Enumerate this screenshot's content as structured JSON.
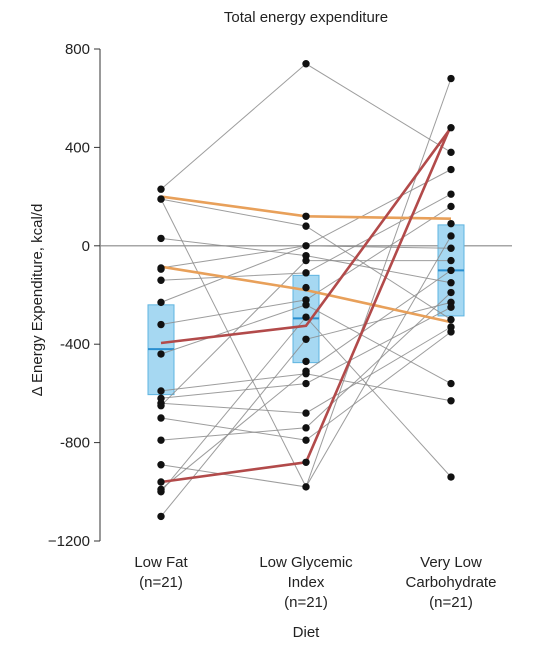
{
  "chart_data": {
    "type": "scatter",
    "title": "Total energy expenditure",
    "xlabel": "Diet",
    "ylabel": "Δ Energy Expenditure, kcal/d",
    "ylim": [
      -1200,
      800
    ],
    "yticks": [
      800,
      400,
      0,
      -400,
      -800,
      -1200
    ],
    "ytick_labels": [
      "800",
      "400",
      "0",
      "-400",
      "-800",
      "−1200"
    ],
    "categories": [
      {
        "lines": [
          "Low Fat",
          "(n=21)"
        ]
      },
      {
        "lines": [
          "Low Glycemic",
          "Index",
          "(n=21)"
        ]
      },
      {
        "lines": [
          "Very Low",
          "Carbohydrate",
          "(n=21)"
        ]
      }
    ],
    "boxes": [
      {
        "low": -605,
        "median": -420,
        "high": -240
      },
      {
        "low": -475,
        "median": -295,
        "high": -120
      },
      {
        "low": -285,
        "median": -100,
        "high": 85
      }
    ],
    "points": [
      [
        230,
        190,
        30,
        -90,
        -95,
        -230,
        -320,
        -440,
        -590,
        -620,
        -640,
        -700,
        -790,
        -890,
        -960,
        -990,
        -1100,
        -1000,
        -650,
        -140,
        190
      ],
      [
        740,
        120,
        80,
        0,
        -40,
        -60,
        -110,
        -170,
        -220,
        -240,
        -290,
        -380,
        -470,
        -510,
        -520,
        -560,
        -680,
        -740,
        -790,
        -980,
        -880
      ],
      [
        680,
        480,
        380,
        310,
        210,
        160,
        90,
        40,
        -10,
        -60,
        -100,
        -150,
        -190,
        -230,
        -250,
        -300,
        -330,
        -350,
        -560,
        -630,
        -940
      ]
    ],
    "paths": [
      {
        "color": "#8c8c8c",
        "values": [
          230,
          740,
          380
        ]
      },
      {
        "color": "#8c8c8c",
        "values": [
          190,
          80,
          -300
        ]
      },
      {
        "color": "#8c8c8c",
        "values": [
          30,
          -40,
          -150
        ]
      },
      {
        "color": "#8c8c8c",
        "values": [
          -90,
          0,
          -10
        ]
      },
      {
        "color": "#8c8c8c",
        "values": [
          -230,
          0,
          310
        ]
      },
      {
        "color": "#8c8c8c",
        "values": [
          -320,
          -220,
          160
        ]
      },
      {
        "color": "#8c8c8c",
        "values": [
          -440,
          -240,
          -560
        ]
      },
      {
        "color": "#8c8c8c",
        "values": [
          -590,
          -520,
          -630
        ]
      },
      {
        "color": "#8c8c8c",
        "values": [
          -620,
          -560,
          -250
        ]
      },
      {
        "color": "#8c8c8c",
        "values": [
          -640,
          -680,
          -330
        ]
      },
      {
        "color": "#8c8c8c",
        "values": [
          -700,
          -790,
          -350
        ]
      },
      {
        "color": "#8c8c8c",
        "values": [
          -790,
          -740,
          -190
        ]
      },
      {
        "color": "#8c8c8c",
        "values": [
          -890,
          -980,
          680
        ]
      },
      {
        "color": "#8c8c8c",
        "values": [
          -990,
          -510,
          -100
        ]
      },
      {
        "color": "#8c8c8c",
        "values": [
          -1100,
          -380,
          -230
        ]
      },
      {
        "color": "#8c8c8c",
        "values": [
          -650,
          -60,
          -60
        ]
      },
      {
        "color": "#8c8c8c",
        "values": [
          -140,
          -110,
          210
        ]
      },
      {
        "color": "#8c8c8c",
        "values": [
          190,
          -980,
          40
        ]
      },
      {
        "color": "#8c8c8c",
        "values": [
          -1000,
          -290,
          -940
        ]
      },
      {
        "color": "#e8a05a",
        "values": [
          200,
          120,
          110
        ]
      },
      {
        "color": "#e8a05a",
        "values": [
          -85,
          -180,
          -310
        ]
      },
      {
        "color": "#b24a4a",
        "values": [
          -395,
          -325,
          480
        ]
      },
      {
        "color": "#b24a4a",
        "values": [
          -960,
          -880,
          490
        ]
      }
    ],
    "colors": {
      "box_fill": "#a6d8f2",
      "box_edge": "#5fb4e0",
      "median": "#2a8fd0",
      "point": "#111111",
      "zero_line": "#888888"
    }
  }
}
